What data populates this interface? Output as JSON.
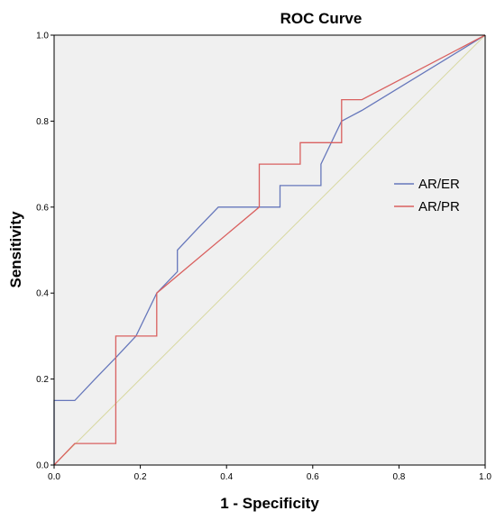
{
  "chart_data": {
    "type": "line",
    "title": "ROC Curve",
    "xlabel": "1 - Specificity",
    "ylabel": "Sensitivity",
    "xlim": [
      0,
      1
    ],
    "ylim": [
      0,
      1
    ],
    "x_ticks": [
      "0.0",
      "0.2",
      "0.4",
      "0.6",
      "0.8",
      "1.0"
    ],
    "y_ticks": [
      "0.0",
      "0.2",
      "0.4",
      "0.6",
      "0.8",
      "1.0"
    ],
    "grid": false,
    "legend_position": "right",
    "background_color": "#f0f0f0",
    "series": [
      {
        "name": "AR/ER",
        "color": "#6677bb",
        "points": [
          [
            0,
            0
          ],
          [
            0,
            0.15
          ],
          [
            0.048,
            0.15
          ],
          [
            0.095,
            0.2
          ],
          [
            0.143,
            0.25
          ],
          [
            0.19,
            0.3
          ],
          [
            0.238,
            0.4
          ],
          [
            0.286,
            0.45
          ],
          [
            0.286,
            0.5
          ],
          [
            0.333,
            0.55
          ],
          [
            0.381,
            0.6
          ],
          [
            0.429,
            0.6
          ],
          [
            0.476,
            0.6
          ],
          [
            0.524,
            0.6
          ],
          [
            0.524,
            0.65
          ],
          [
            0.571,
            0.65
          ],
          [
            0.619,
            0.65
          ],
          [
            0.619,
            0.7
          ],
          [
            0.667,
            0.8
          ],
          [
            0.714,
            0.825
          ],
          [
            1.0,
            1.0
          ]
        ]
      },
      {
        "name": "AR/PR",
        "color": "#d9605f",
        "points": [
          [
            0,
            0
          ],
          [
            0.048,
            0.05
          ],
          [
            0.143,
            0.05
          ],
          [
            0.143,
            0.3
          ],
          [
            0.238,
            0.3
          ],
          [
            0.238,
            0.4
          ],
          [
            0.476,
            0.6
          ],
          [
            0.476,
            0.7
          ],
          [
            0.571,
            0.7
          ],
          [
            0.571,
            0.75
          ],
          [
            0.667,
            0.75
          ],
          [
            0.667,
            0.85
          ],
          [
            0.714,
            0.85
          ],
          [
            1.0,
            1.0
          ]
        ]
      },
      {
        "name": "Reference Line",
        "color": "#d8d8a0",
        "points": [
          [
            0,
            0
          ],
          [
            1,
            1
          ]
        ]
      }
    ]
  }
}
